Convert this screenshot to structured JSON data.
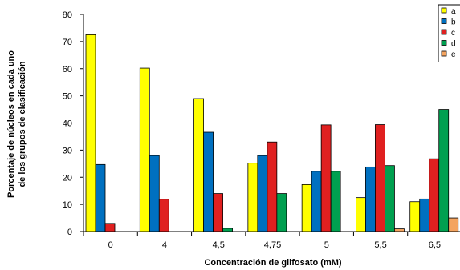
{
  "chart_data": {
    "type": "bar",
    "title": "",
    "xlabel": "Concentración de glifosato (mM)",
    "ylabel_lines": [
      "Porcentaje de núcleos en cada uno",
      "de los grupos de clasificación"
    ],
    "categories": [
      "0",
      "4",
      "4,5",
      "4,75",
      "5",
      "5,5",
      "6,5"
    ],
    "ylim": [
      0,
      80
    ],
    "yticks": [
      0,
      10,
      20,
      30,
      40,
      50,
      60,
      70,
      80
    ],
    "grid": false,
    "legend_position": "top-right",
    "series": [
      {
        "name": "a",
        "color": "#ffff00",
        "values": [
          72.5,
          60.2,
          49,
          25.2,
          17.3,
          12.5,
          11
        ]
      },
      {
        "name": "b",
        "color": "#0070c0",
        "values": [
          24.7,
          28,
          36.6,
          28,
          22.2,
          23.8,
          12
        ]
      },
      {
        "name": "c",
        "color": "#e02020",
        "values": [
          3,
          11.9,
          14,
          33,
          39.3,
          39.4,
          26.8
        ]
      },
      {
        "name": "d",
        "color": "#00a050",
        "values": [
          0,
          0,
          1.2,
          14,
          22.2,
          24.3,
          45
        ]
      },
      {
        "name": "e",
        "color": "#f4a460",
        "values": [
          0,
          0,
          0,
          0,
          0,
          1,
          5
        ]
      }
    ]
  }
}
